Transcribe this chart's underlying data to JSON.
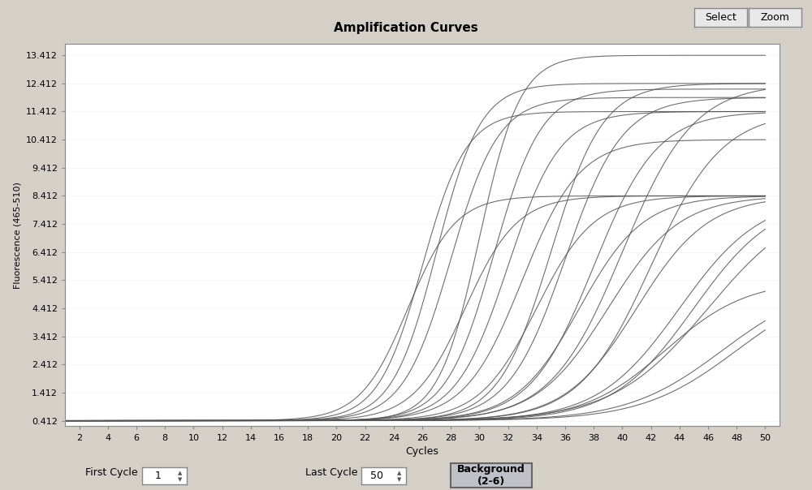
{
  "title": "Amplification Curves",
  "xlabel": "Cycles",
  "ylabel": "Fluorescence (465-510)",
  "xlim": [
    1,
    51
  ],
  "ylim": [
    0.212,
    13.812
  ],
  "xticks": [
    2,
    4,
    6,
    8,
    10,
    12,
    14,
    16,
    18,
    20,
    22,
    24,
    26,
    28,
    30,
    32,
    34,
    36,
    38,
    40,
    42,
    44,
    46,
    48,
    50
  ],
  "yticks": [
    0.412,
    1.412,
    2.412,
    3.412,
    4.412,
    5.412,
    6.412,
    7.412,
    8.412,
    9.412,
    10.412,
    11.412,
    12.412,
    13.412
  ],
  "bg_color": "#d4d0c8",
  "plot_bg_color": "#ffffff",
  "line_color": "#555555",
  "baseline": 0.412,
  "curves": [
    {
      "midpoint": 25,
      "top": 8.412,
      "k": 0.6
    },
    {
      "midpoint": 26,
      "top": 11.412,
      "k": 0.65
    },
    {
      "midpoint": 27,
      "top": 12.412,
      "k": 0.65
    },
    {
      "midpoint": 28,
      "top": 11.912,
      "k": 0.6
    },
    {
      "midpoint": 29,
      "top": 8.412,
      "k": 0.55
    },
    {
      "midpoint": 30,
      "top": 13.412,
      "k": 0.7
    },
    {
      "midpoint": 31,
      "top": 12.212,
      "k": 0.6
    },
    {
      "midpoint": 32,
      "top": 11.412,
      "k": 0.55
    },
    {
      "midpoint": 33,
      "top": 10.412,
      "k": 0.5
    },
    {
      "midpoint": 34,
      "top": 8.412,
      "k": 0.5
    },
    {
      "midpoint": 35,
      "top": 12.412,
      "k": 0.55
    },
    {
      "midpoint": 36,
      "top": 11.912,
      "k": 0.5
    },
    {
      "midpoint": 37,
      "top": 8.412,
      "k": 0.45
    },
    {
      "midpoint": 38,
      "top": 11.412,
      "k": 0.45
    },
    {
      "midpoint": 39,
      "top": 8.412,
      "k": 0.4
    },
    {
      "midpoint": 40,
      "top": 12.412,
      "k": 0.4
    },
    {
      "midpoint": 41,
      "top": 8.412,
      "k": 0.4
    },
    {
      "midpoint": 42,
      "top": 11.412,
      "k": 0.4
    },
    {
      "midpoint": 43,
      "top": 5.412,
      "k": 0.35
    },
    {
      "midpoint": 44,
      "top": 8.412,
      "k": 0.35
    },
    {
      "midpoint": 45,
      "top": 8.412,
      "k": 0.35
    },
    {
      "midpoint": 46,
      "top": 8.412,
      "k": 0.3
    },
    {
      "midpoint": 47,
      "top": 5.412,
      "k": 0.3
    },
    {
      "midpoint": 48,
      "top": 5.412,
      "k": 0.3
    }
  ],
  "first_cycle_label": "First Cycle",
  "first_cycle_value": "1",
  "last_cycle_label": "Last Cycle",
  "last_cycle_value": "50",
  "background_btn_label": "Background\n(2-6)",
  "select_btn_label": "Select",
  "zoom_btn_label": "Zoom"
}
